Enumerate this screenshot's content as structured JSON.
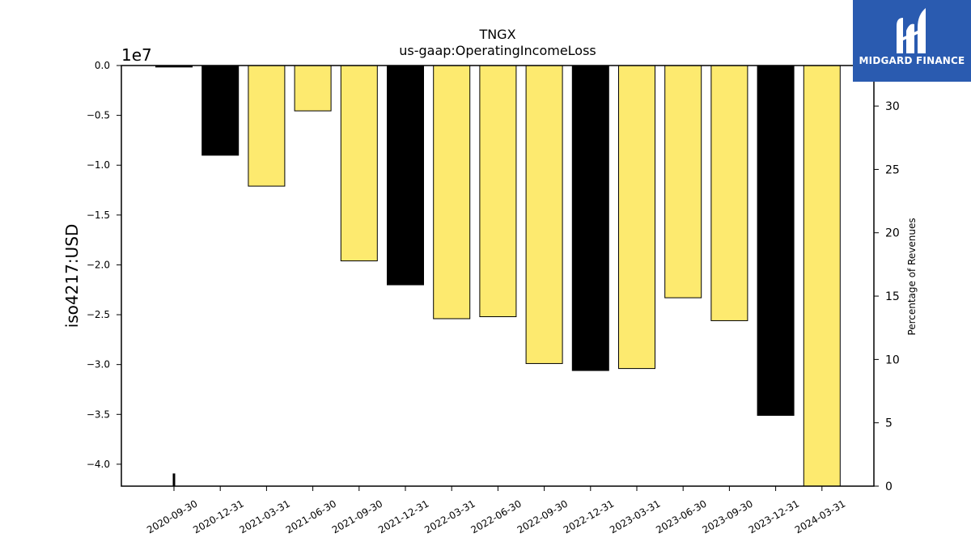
{
  "chart_data": {
    "type": "bar",
    "title": "TNGX",
    "subtitle": "us-gaap:OperatingIncomeLoss",
    "ylabel": "iso4217:USD",
    "y_offset_label": "1e7",
    "y2label": "Percentage of Revenues",
    "categories": [
      "2020-09-30",
      "2020-12-31",
      "2021-03-31",
      "2021-06-30",
      "2021-09-30",
      "2021-12-31",
      "2022-03-31",
      "2022-06-30",
      "2022-09-30",
      "2022-12-31",
      "2023-03-31",
      "2023-06-30",
      "2023-09-30",
      "2023-12-31",
      "2024-03-31"
    ],
    "values": [
      -150000,
      -9000000,
      -12100000,
      -4550000,
      -19600000,
      -22000000,
      -25400000,
      -25200000,
      -29900000,
      -30600000,
      -30400000,
      -23300000,
      -25600000,
      -35100000,
      -42500000
    ],
    "bar_colors": [
      "#000000",
      "#000000",
      "#fdea6f",
      "#fdea6f",
      "#fdea6f",
      "#000000",
      "#fdea6f",
      "#fdea6f",
      "#fdea6f",
      "#000000",
      "#fdea6f",
      "#fdea6f",
      "#fdea6f",
      "#000000",
      "#fdea6f"
    ],
    "ylim": [
      -42200000,
      0
    ],
    "yticks": [
      0,
      -5000000,
      -10000000,
      -15000000,
      -20000000,
      -25000000,
      -30000000,
      -35000000,
      -40000000
    ],
    "ytick_labels": [
      "0.0",
      "−0.5",
      "−1.0",
      "−1.5",
      "−2.0",
      "−2.5",
      "−3.0",
      "−3.5",
      "−4.0"
    ],
    "y2lim": [
      0,
      33.2
    ],
    "y2ticks": [
      0,
      5,
      10,
      15,
      20,
      25,
      30
    ],
    "y2tick_labels": [
      "0",
      "5",
      "10",
      "15",
      "20",
      "25",
      "30"
    ],
    "line_series": {
      "name": "",
      "values": [
        1.0
      ],
      "x_index": [
        0
      ]
    },
    "grid": false,
    "legend": "none"
  },
  "logo": {
    "text": "MIDGARD FINANCE",
    "background": "#2a5bb0"
  }
}
